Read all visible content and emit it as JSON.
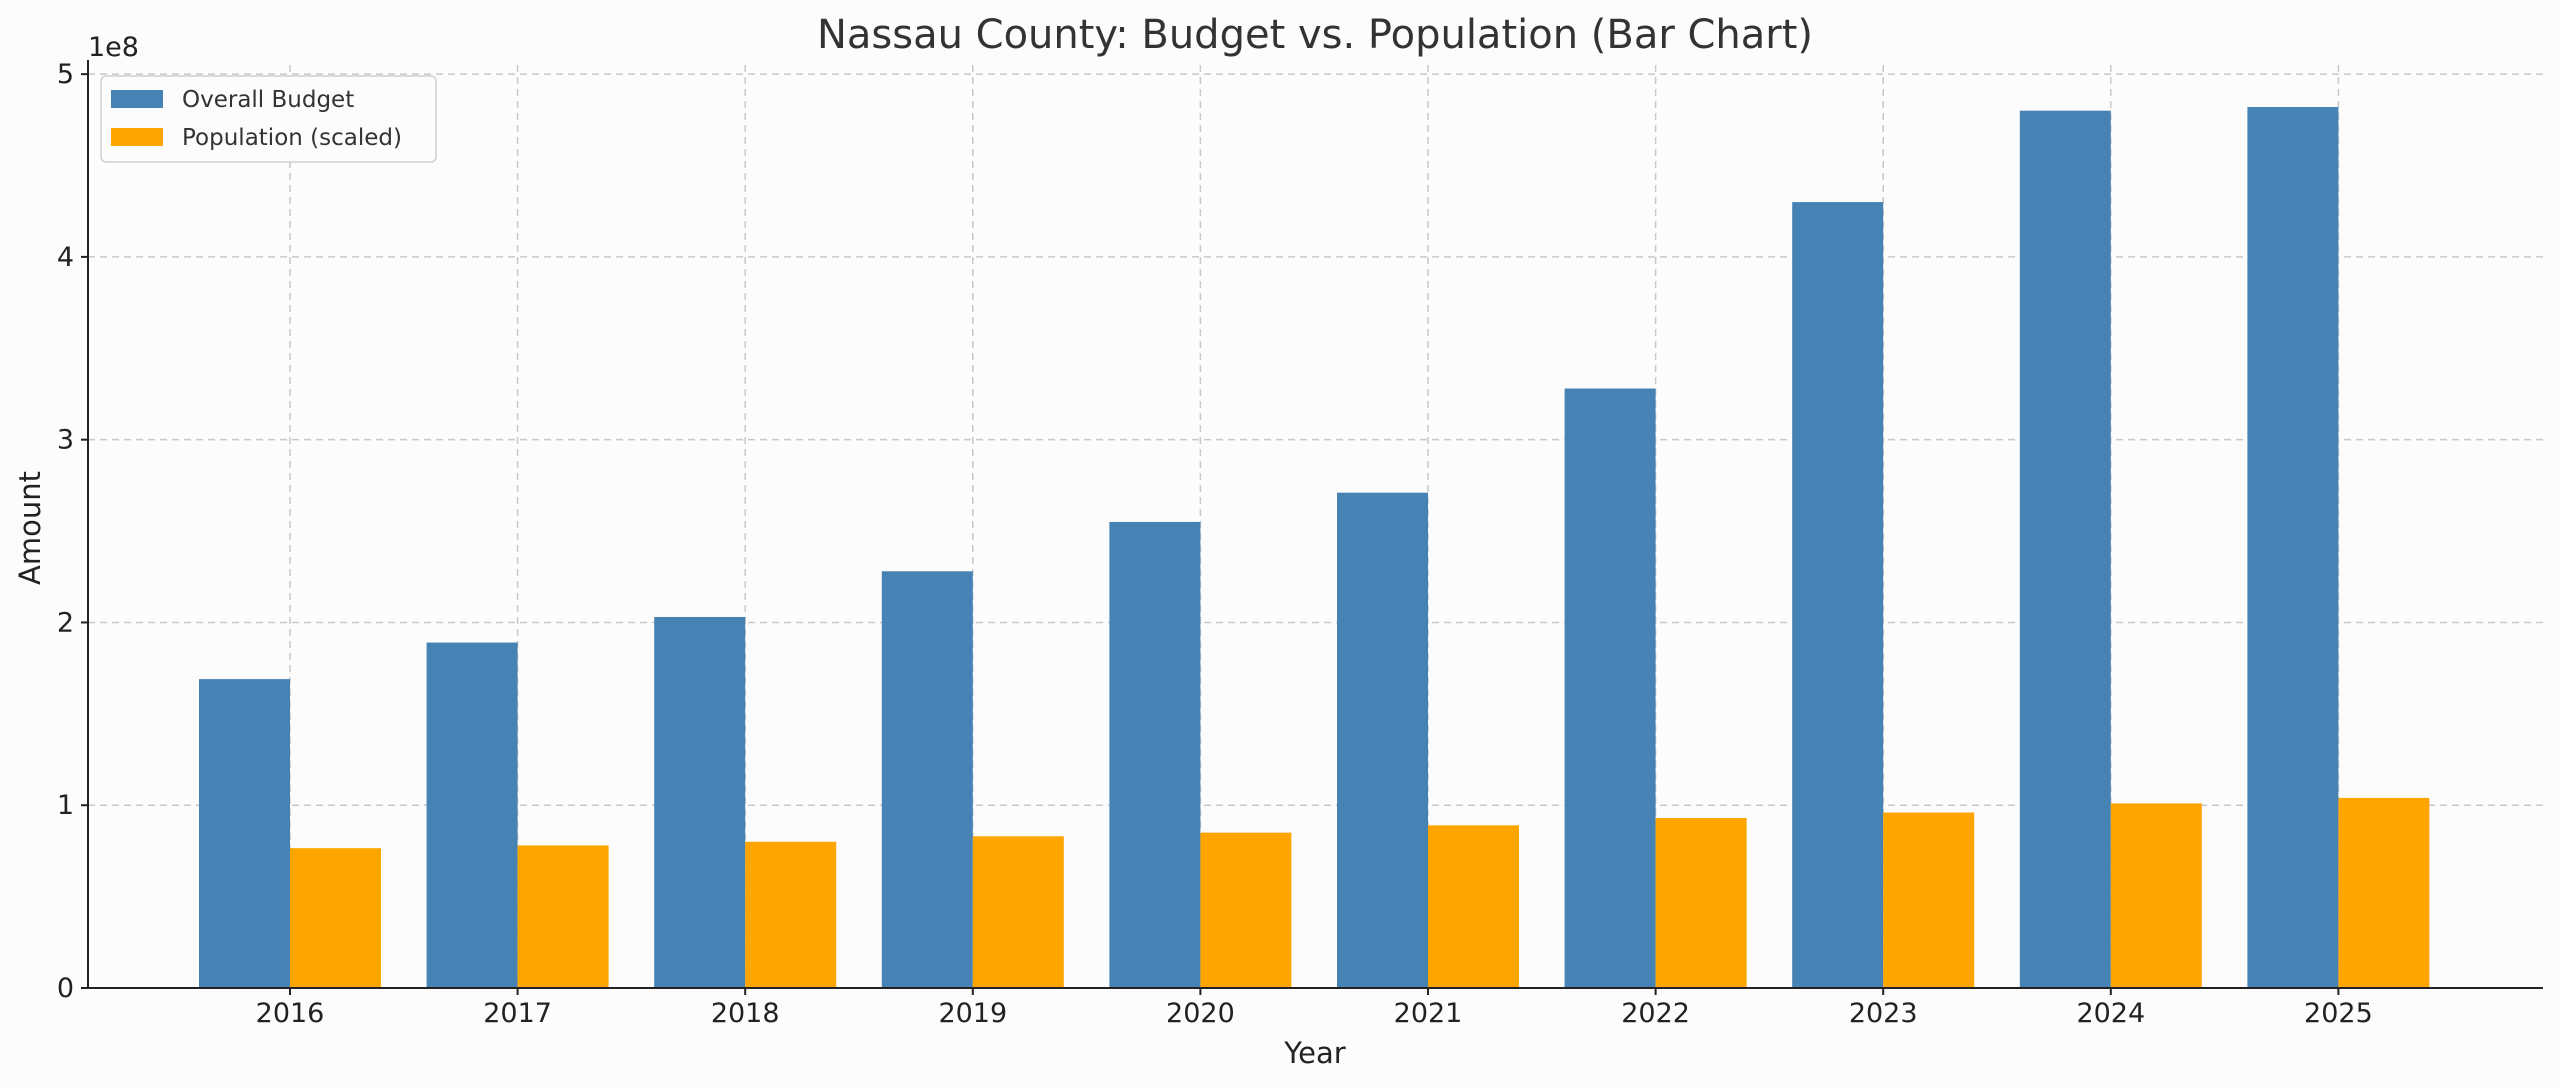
{
  "chart_data": {
    "type": "bar",
    "title": "Nassau County: Budget vs. Population (Bar Chart)",
    "xlabel": "Year",
    "ylabel": "Amount",
    "y_offset_label": "1e8",
    "categories": [
      "2016",
      "2017",
      "2018",
      "2019",
      "2020",
      "2021",
      "2022",
      "2023",
      "2024",
      "2025"
    ],
    "series": [
      {
        "name": "Overall Budget",
        "color": "#4682b4",
        "values": [
          169000000,
          189000000,
          203000000,
          228000000,
          255000000,
          271000000,
          328000000,
          430000000,
          480000000,
          482000000
        ]
      },
      {
        "name": "Population (scaled)",
        "color": "#ffa500",
        "values": [
          76500000,
          78000000,
          80000000,
          83000000,
          85000000,
          89000000,
          93000000,
          96000000,
          101000000,
          104000000
        ]
      }
    ],
    "ylim": [
      0,
      505000000
    ],
    "yticks": [
      0,
      100000000,
      200000000,
      300000000,
      400000000,
      500000000
    ],
    "ytick_labels": [
      "0",
      "1",
      "2",
      "3",
      "4",
      "5"
    ],
    "grid": true,
    "legend_position": "top-left"
  }
}
